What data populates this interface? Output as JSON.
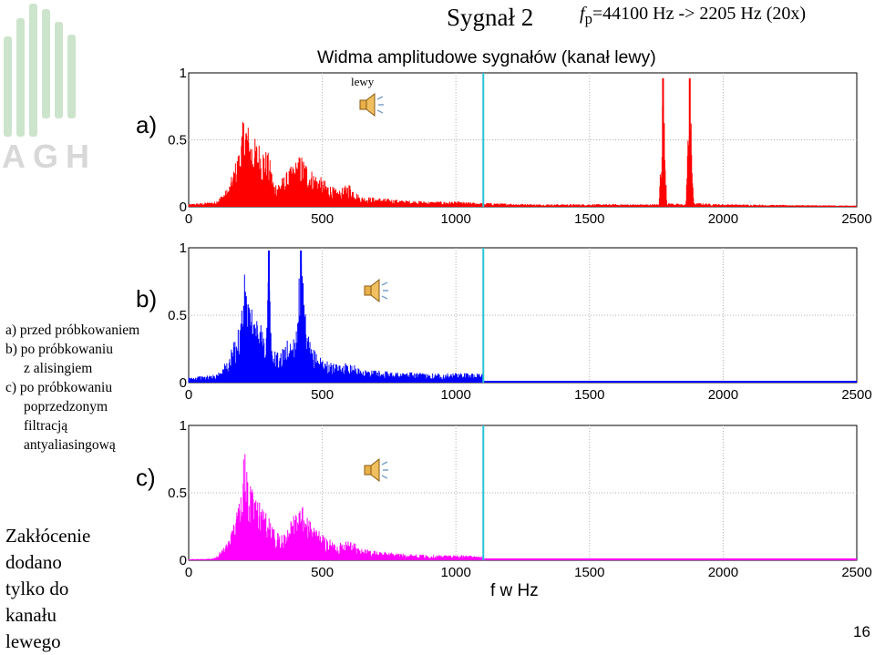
{
  "slide": {
    "title": "Sygnał 2",
    "fp_symbol": "f",
    "fp_subscript": "p",
    "fp_text": "=44100 Hz  -> 2205 Hz (20x)",
    "page_number": "16",
    "logo_text": "AGH"
  },
  "legend": {
    "lines": [
      "a) przed próbkowaniem",
      "b) po próbkowaniu",
      "z alisingiem",
      "c) po próbkowaniu",
      "poprzedzonym",
      "filtracją",
      "antyaliasingową"
    ]
  },
  "note": {
    "lines": [
      "Zakłócenie",
      "dodano",
      "tylko do",
      "kanału",
      "lewego"
    ]
  },
  "speaker_label": "lewy",
  "icons": [
    "logo-agh",
    "speaker-icon"
  ],
  "chart_data": {
    "type": "line",
    "title": "Widma amplitudowe sygnałów (kanał lewy)",
    "xlabel": "f w Hz",
    "xlim": [
      0,
      2500
    ],
    "ylim": [
      0,
      1
    ],
    "xticks": [
      0,
      500,
      1000,
      1500,
      2000,
      2500
    ],
    "yticks": [
      "0",
      "0.5",
      "1"
    ],
    "grid": true,
    "nyquist_marker": {
      "x": 1102.5,
      "color": "#29c5d6"
    },
    "panels": [
      {
        "letter": "a)",
        "color": "#ff0000",
        "x": [
          0,
          50,
          100,
          150,
          190,
          210,
          230,
          270,
          300,
          320,
          350,
          390,
          420,
          460,
          520,
          560,
          600,
          640,
          700,
          800,
          900,
          1000,
          1100,
          1300,
          1500,
          1700,
          1760,
          1775,
          1790,
          1850,
          1860,
          1875,
          1890,
          2000,
          2200,
          2500
        ],
        "y": [
          0.02,
          0.03,
          0.04,
          0.15,
          0.45,
          0.75,
          0.55,
          0.48,
          0.4,
          0.18,
          0.22,
          0.32,
          0.4,
          0.28,
          0.18,
          0.12,
          0.18,
          0.08,
          0.07,
          0.05,
          0.04,
          0.04,
          0.03,
          0.02,
          0.02,
          0.02,
          0.02,
          0.96,
          0.03,
          0.02,
          0.02,
          0.96,
          0.03,
          0.02,
          0.015,
          0.01
        ]
      },
      {
        "letter": "b)",
        "color": "#0000ff",
        "x": [
          0,
          50,
          100,
          150,
          190,
          210,
          230,
          260,
          290,
          300,
          310,
          340,
          370,
          400,
          420,
          440,
          460,
          520,
          560,
          600,
          640,
          700,
          800,
          900,
          1000,
          1100,
          1103,
          1500,
          2000,
          2500
        ],
        "y": [
          0.04,
          0.05,
          0.06,
          0.18,
          0.45,
          0.82,
          0.56,
          0.5,
          0.35,
          0.98,
          0.25,
          0.22,
          0.32,
          0.38,
          0.98,
          0.42,
          0.26,
          0.16,
          0.13,
          0.16,
          0.1,
          0.09,
          0.08,
          0.07,
          0.07,
          0.07,
          0.0,
          0.0,
          0.0,
          0.0
        ]
      },
      {
        "letter": "c)",
        "color": "#ff00ff",
        "x": [
          0,
          50,
          100,
          150,
          190,
          210,
          230,
          260,
          290,
          330,
          350,
          390,
          420,
          460,
          520,
          560,
          600,
          640,
          700,
          800,
          900,
          1000,
          1100,
          1103,
          1500,
          2000,
          2500
        ],
        "y": [
          0.01,
          0.01,
          0.02,
          0.15,
          0.45,
          0.83,
          0.55,
          0.5,
          0.38,
          0.2,
          0.22,
          0.32,
          0.42,
          0.28,
          0.16,
          0.12,
          0.18,
          0.09,
          0.07,
          0.05,
          0.04,
          0.04,
          0.03,
          0.0,
          0.0,
          0.0,
          0.0
        ]
      }
    ]
  }
}
